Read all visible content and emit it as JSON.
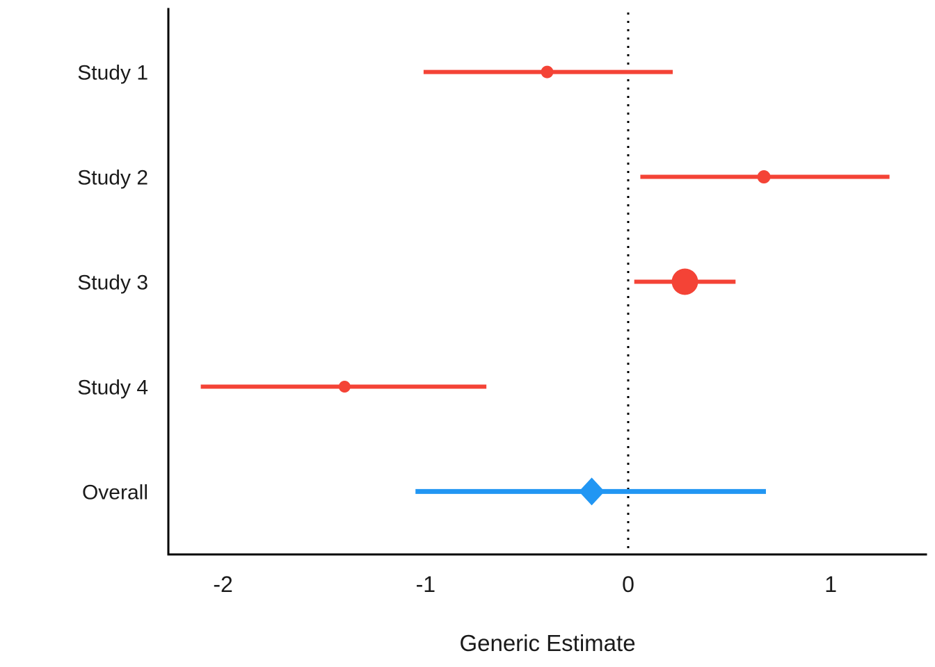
{
  "chart_data": {
    "type": "scatter",
    "subtype": "forest_plot",
    "title": "",
    "xlabel": "Generic Estimate",
    "ylabel": "",
    "x_tick_values": [
      -2,
      -1,
      0,
      1
    ],
    "x_tick_labels": [
      "-2",
      "-1",
      "0",
      "1"
    ],
    "xlim": [
      -2.27,
      1.47
    ],
    "grid": false,
    "legend": "none",
    "reference_line": {
      "x": 0,
      "style": "dotted",
      "color": "#000000"
    },
    "categories": [
      "Study 1",
      "Study 2",
      "Study 3",
      "Study 4",
      "Overall"
    ],
    "rows": [
      {
        "label": "Study 1",
        "estimate": -0.4,
        "ci_low": -1.01,
        "ci_high": 0.22,
        "marker": "circle",
        "marker_size": 18,
        "color": "#F44336"
      },
      {
        "label": "Study 2",
        "estimate": 0.67,
        "ci_low": 0.06,
        "ci_high": 1.29,
        "marker": "circle",
        "marker_size": 19,
        "color": "#F44336"
      },
      {
        "label": "Study 3",
        "estimate": 0.28,
        "ci_low": 0.03,
        "ci_high": 0.53,
        "marker": "circle",
        "marker_size": 38,
        "color": "#F44336"
      },
      {
        "label": "Study 4",
        "estimate": -1.4,
        "ci_low": -2.11,
        "ci_high": -0.7,
        "marker": "circle",
        "marker_size": 17,
        "color": "#F44336"
      },
      {
        "label": "Overall",
        "estimate": -0.18,
        "ci_low": -1.05,
        "ci_high": 0.68,
        "marker": "diamond",
        "marker_size": 40,
        "color": "#2196F3"
      }
    ],
    "colors": {
      "study_marker": "#F44336",
      "overall_marker": "#2196F3",
      "axis_line": "#000000",
      "text": "#1a1a1a",
      "background": "#ffffff"
    }
  }
}
